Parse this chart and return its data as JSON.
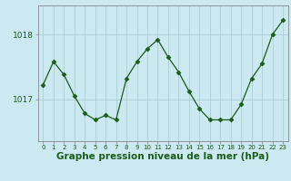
{
  "x": [
    0,
    1,
    2,
    3,
    4,
    5,
    6,
    7,
    8,
    9,
    10,
    11,
    12,
    13,
    14,
    15,
    16,
    17,
    18,
    19,
    20,
    21,
    22,
    23
  ],
  "y": [
    1017.22,
    1017.58,
    1017.38,
    1017.05,
    1016.78,
    1016.68,
    1016.75,
    1016.68,
    1017.32,
    1017.58,
    1017.78,
    1017.92,
    1017.65,
    1017.42,
    1017.12,
    1016.85,
    1016.68,
    1016.68,
    1016.68,
    1016.92,
    1017.32,
    1017.55,
    1018.0,
    1018.22
  ],
  "line_color": "#1a5c1a",
  "marker": "D",
  "marker_size": 2.5,
  "bg_color": "#cce8f0",
  "grid_color": "#aacdd8",
  "xlabel": "Graphe pression niveau de la mer (hPa)",
  "xlabel_fontsize": 7.5,
  "xtick_labels": [
    "0",
    "1",
    "2",
    "3",
    "4",
    "5",
    "6",
    "7",
    "8",
    "9",
    "10",
    "11",
    "12",
    "13",
    "14",
    "15",
    "16",
    "17",
    "18",
    "19",
    "20",
    "21",
    "22",
    "23"
  ],
  "yticks": [
    1017,
    1018
  ],
  "ylim": [
    1016.35,
    1018.45
  ],
  "xlim": [
    -0.5,
    23.5
  ],
  "axis_color": "#888888"
}
